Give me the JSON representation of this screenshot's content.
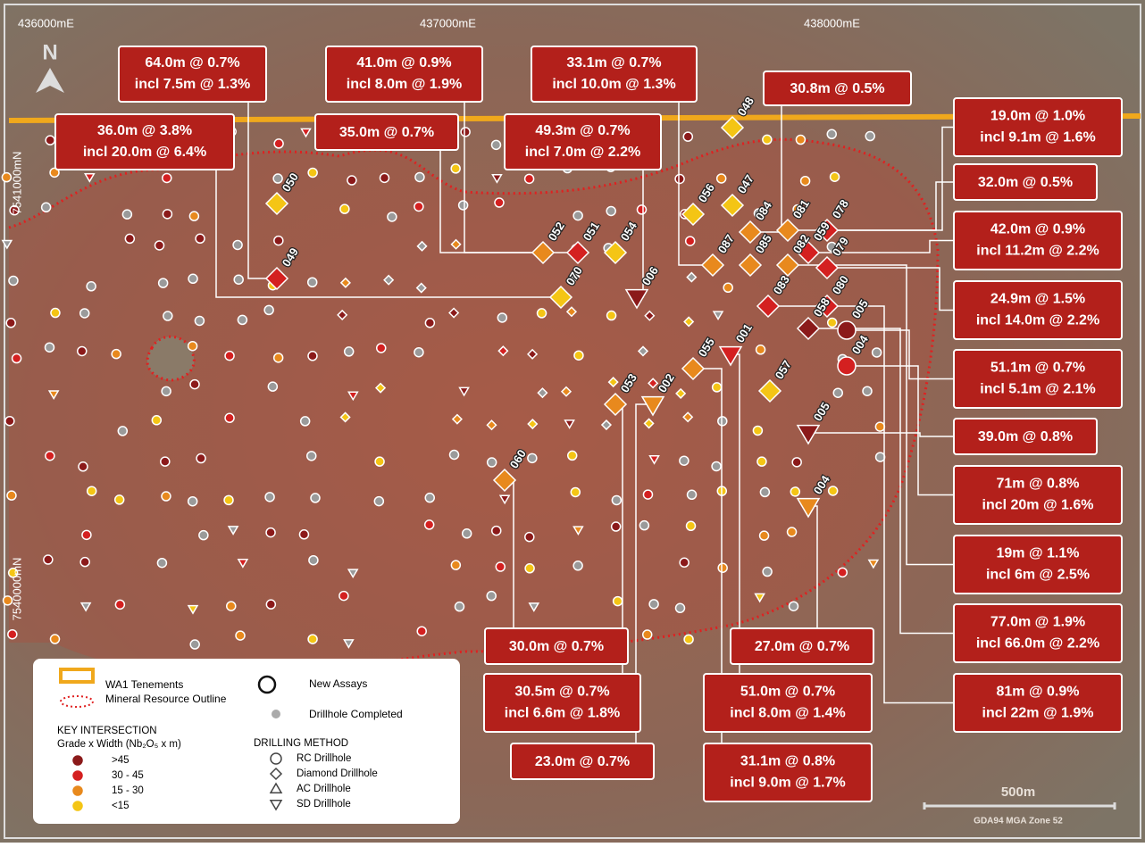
{
  "grid_labels": [
    "436000mE",
    "437000mE",
    "438000mE",
    "7541000mN",
    "7540000mN"
  ],
  "north": "N",
  "callouts": [
    {
      "lines": [
        "64.0m @ 0.7%",
        "incl 7.5m @ 1.3%"
      ]
    },
    {
      "lines": [
        "36.0m @ 3.8%",
        "incl 20.0m @ 6.4%"
      ]
    },
    {
      "lines": [
        "41.0m @ 0.9%",
        "incl 8.0m @ 1.9%"
      ]
    },
    {
      "lines": [
        "35.0m @ 0.7%"
      ]
    },
    {
      "lines": [
        "33.1m @ 0.7%",
        "incl 10.0m @ 1.3%"
      ]
    },
    {
      "lines": [
        "49.3m @ 0.7%",
        "incl 7.0m @ 2.2%"
      ]
    },
    {
      "lines": [
        "30.8m @ 0.5%"
      ]
    },
    {
      "lines": [
        "19.0m @ 1.0%",
        "incl 9.1m @ 1.6%"
      ]
    },
    {
      "lines": [
        "32.0m @ 0.5%"
      ]
    },
    {
      "lines": [
        "42.0m @ 0.9%",
        "incl 11.2m @ 2.2%"
      ]
    },
    {
      "lines": [
        "24.9m @ 1.5%",
        "incl 14.0m @ 2.2%"
      ]
    },
    {
      "lines": [
        "51.1m @ 0.7%",
        "incl 5.1m @ 2.1%"
      ]
    },
    {
      "lines": [
        "39.0m @ 0.8%"
      ]
    },
    {
      "lines": [
        "71m @ 0.8%",
        "incl 20m @ 1.6%"
      ]
    },
    {
      "lines": [
        "19m @ 1.1%",
        "incl 6m @ 2.5%"
      ]
    },
    {
      "lines": [
        "77.0m @ 1.9%",
        "incl 66.0m @ 2.2%"
      ]
    },
    {
      "lines": [
        "81m @ 0.9%",
        "incl 22m @ 1.9%"
      ]
    },
    {
      "lines": [
        "30.0m @ 0.7%"
      ]
    },
    {
      "lines": [
        "27.0m @ 0.7%"
      ]
    },
    {
      "lines": [
        "30.5m @ 0.7%",
        "incl 6.6m @ 1.8%"
      ]
    },
    {
      "lines": [
        "51.0m @ 0.7%",
        "incl 8.0m @ 1.4%"
      ]
    },
    {
      "lines": [
        "23.0m @ 0.7%"
      ]
    },
    {
      "lines": [
        "31.1m @ 0.8%",
        "incl 9.0m @ 1.7%"
      ]
    }
  ],
  "holes": [
    "050",
    "049",
    "052",
    "051",
    "054",
    "070",
    "006",
    "048",
    "056",
    "047",
    "084",
    "081",
    "078",
    "059",
    "087",
    "085",
    "082",
    "079",
    "080",
    "083",
    "058",
    "005",
    "004",
    "001",
    "055",
    "053",
    "002",
    "057",
    "005",
    "004",
    "060"
  ],
  "legend": {
    "tenements": "WA1 Tenements",
    "outline": "Mineral Resource Outline",
    "new_assays": "New Assays",
    "completed": "Drillhole Completed",
    "key_title": "KEY INTERSECTION",
    "key_subtitle": "Grade x Width (Nb₂O₅ x m)",
    "grades": [
      ">45",
      "30 - 45",
      "15 - 30",
      "<15"
    ],
    "method_title": "DRILLING METHOD",
    "methods": [
      "RC Drillhole",
      "Diamond Drillhole",
      "AC Drillhole",
      "SD Drillhole"
    ]
  },
  "scale": {
    "label": "500m",
    "datum": "GDA94 MGA Zone 52"
  }
}
